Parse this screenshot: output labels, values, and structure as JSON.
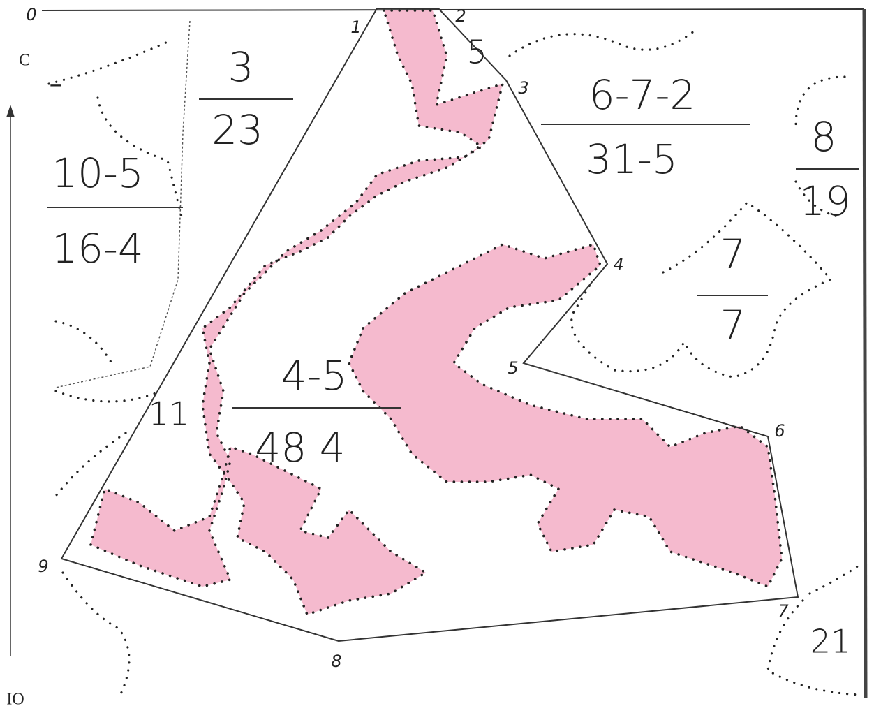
{
  "axis_label_top": "C",
  "axis_label_bottom": "IO",
  "dash": "-",
  "vertices": [
    "0",
    "1",
    "2",
    "3",
    "4",
    "5",
    "6",
    "7",
    "8",
    "9"
  ],
  "fractions": [
    {
      "numerator": "3",
      "denominator": "23"
    },
    {
      "numerator": "10-5",
      "denominator": "16-4"
    },
    {
      "numerator": "6-7-2",
      "denominator": "31-5"
    },
    {
      "numerator": "8",
      "denominator": "19"
    },
    {
      "numerator": "7",
      "denominator": "7"
    },
    {
      "numerator": "4-5",
      "denominator": "48 4"
    }
  ],
  "numbers": [
    "5",
    "11",
    "21"
  ]
}
